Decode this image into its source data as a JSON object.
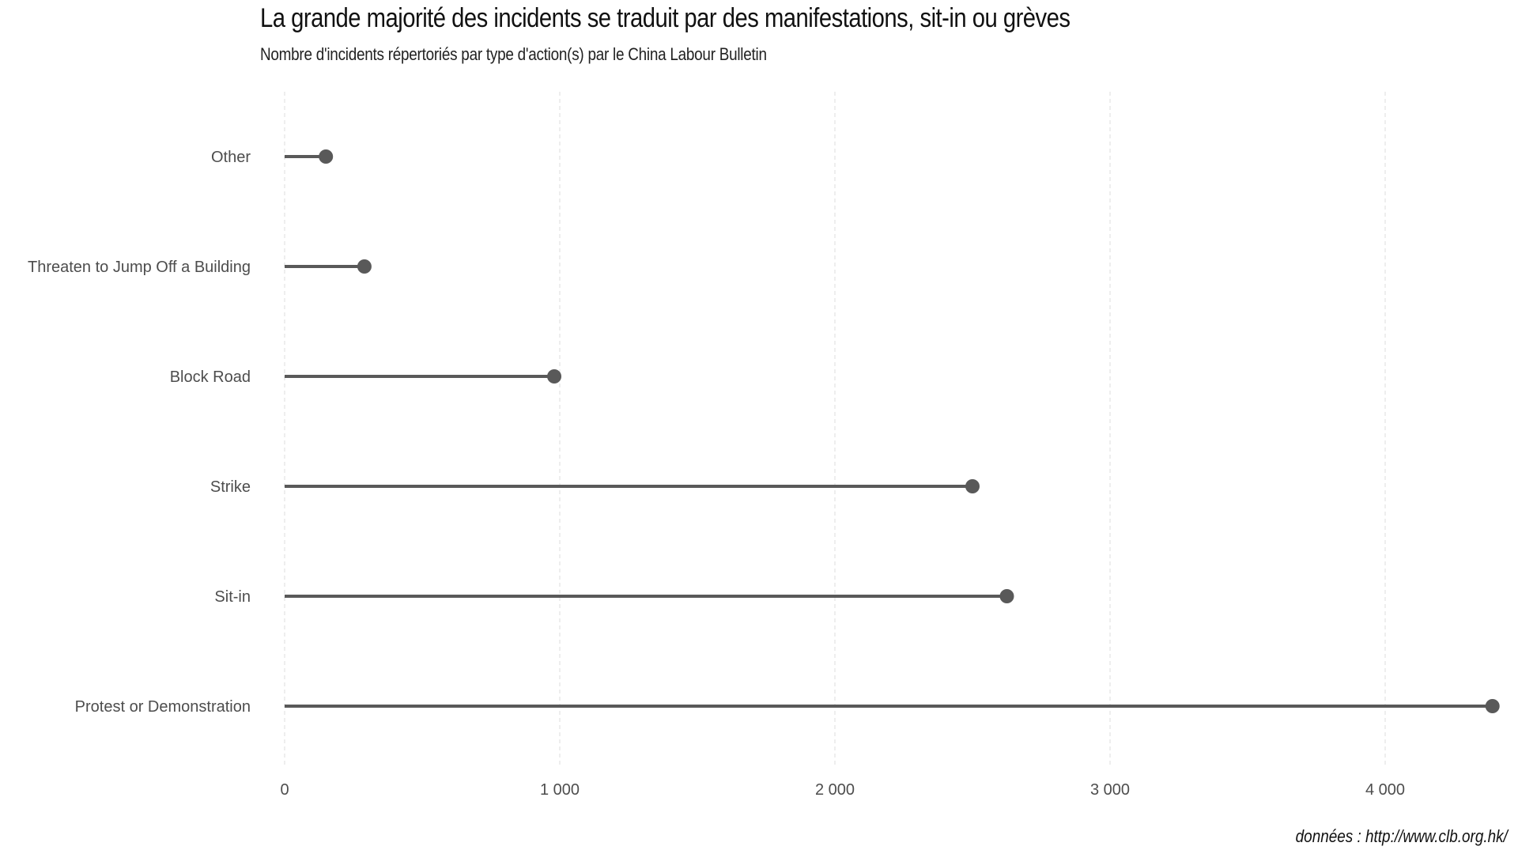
{
  "chart_data": {
    "type": "lollipop",
    "title": "La grande majorité des incidents se traduit par des manifestations, sit-in ou grèves",
    "subtitle": "Nombre d'incidents répertoriés par type d'action(s) par le China Labour Bulletin",
    "caption": "données : http://www.clb.org.hk/",
    "xlabel": "",
    "ylabel": "",
    "xlim": [
      0,
      4400
    ],
    "x_ticks": [
      0,
      1000,
      2000,
      3000,
      4000
    ],
    "x_tick_labels": [
      "0",
      "1 000",
      "2 000",
      "3 000",
      "4 000"
    ],
    "grid": "vertical-dashed",
    "legend": "none",
    "categories": [
      "Other",
      "Threaten to Jump Off a Building",
      "Block Road",
      "Strike",
      "Sit-in",
      "Protest or Demonstration"
    ],
    "values": [
      150,
      290,
      980,
      2500,
      2625,
      4390
    ],
    "color": "#595959"
  }
}
